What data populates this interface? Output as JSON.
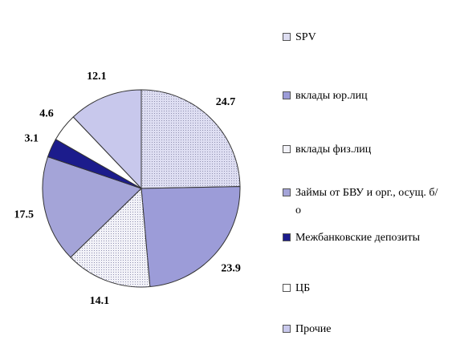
{
  "chart_data": {
    "type": "pie",
    "categories": [
      "SPV",
      "вклады юр.лиц",
      "вклады физ.лиц",
      "Займы от БВУ и орг., осущ. б/о",
      "Межбанковские депозиты",
      "ЦБ",
      "Прочие"
    ],
    "values": [
      24.7,
      23.9,
      14.1,
      17.5,
      3.1,
      4.6,
      12.1
    ],
    "colors": [
      "#dedef2",
      "#9c9cd8",
      "#f2f2f8",
      "#a4a4d8",
      "#1c1c8c",
      "#ffffff",
      "#c8c8ec"
    ]
  }
}
